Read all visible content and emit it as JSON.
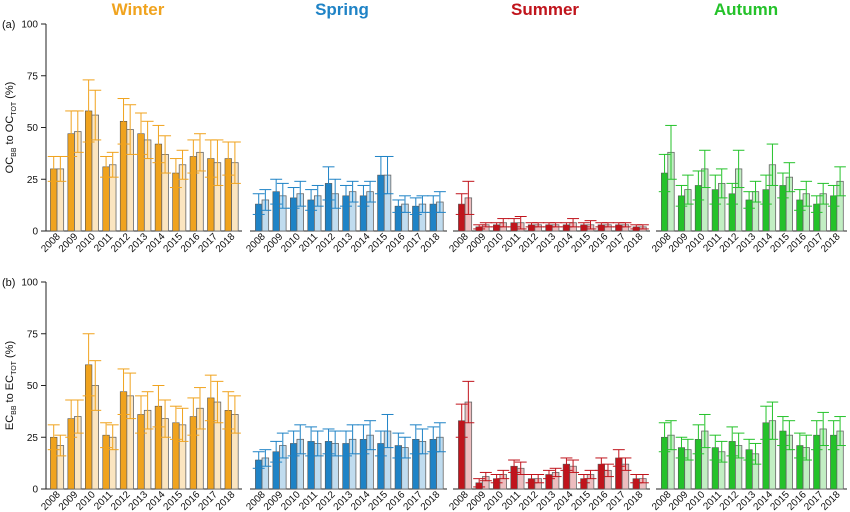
{
  "seasons": [
    {
      "name": "Winter",
      "color": "#f0a31e"
    },
    {
      "name": "Spring",
      "color": "#1f83c6"
    },
    {
      "name": "Summer",
      "color": "#c0141c"
    },
    {
      "name": "Autumn",
      "color": "#24c22a"
    }
  ],
  "chart_data": [
    {
      "type": "bar",
      "panel_label": "(a)",
      "ylabel_parts": [
        "OC",
        "BB",
        " to OC",
        "TOT",
        " (%)"
      ],
      "ylim": [
        0,
        100
      ],
      "yticks": [
        0,
        25,
        50,
        75,
        100
      ],
      "categories": [
        "2008",
        "2009",
        "2010",
        "2011",
        "2012",
        "2013",
        "2014",
        "2015",
        "2016",
        "2017",
        "2018"
      ],
      "groups": [
        {
          "season": "Winter",
          "filled": [
            30,
            47,
            58,
            31,
            53,
            47,
            42,
            28,
            36,
            35,
            35
          ],
          "filled_err": [
            6,
            11,
            15,
            5,
            11,
            10,
            9,
            7,
            8,
            9,
            8
          ],
          "hollow": [
            30,
            48,
            56,
            32,
            49,
            44,
            37,
            32,
            38,
            33,
            33
          ],
          "hollow_err": [
            6,
            10,
            12,
            6,
            12,
            9,
            9,
            7,
            9,
            11,
            10
          ]
        },
        {
          "season": "Spring",
          "filled": [
            13,
            19,
            16,
            15,
            23,
            17,
            17,
            27,
            12,
            12,
            13
          ],
          "filled_err": [
            5,
            6,
            5,
            5,
            8,
            5,
            5,
            9,
            3,
            4,
            4
          ],
          "hollow": [
            15,
            17,
            18,
            17,
            18,
            19,
            19,
            27,
            13,
            13,
            14
          ],
          "hollow_err": [
            5,
            6,
            6,
            5,
            7,
            5,
            5,
            9,
            4,
            4,
            5
          ]
        },
        {
          "season": "Summer",
          "filled": [
            13,
            2,
            3,
            4,
            3,
            3,
            3,
            3,
            3,
            3,
            2
          ],
          "filled_err": [
            5,
            1,
            1,
            2,
            1,
            1,
            1,
            1,
            1,
            1,
            1
          ],
          "hollow": [
            16,
            3,
            4,
            4,
            3,
            3,
            4,
            3,
            3,
            3,
            2
          ],
          "hollow_err": [
            8,
            1,
            2,
            3,
            1,
            1,
            2,
            2,
            1,
            1,
            1
          ]
        },
        {
          "season": "Autumn",
          "filled": [
            28,
            17,
            22,
            20,
            18,
            15,
            20,
            22,
            15,
            13,
            17
          ],
          "filled_err": [
            9,
            5,
            7,
            7,
            5,
            4,
            7,
            6,
            5,
            4,
            5
          ],
          "hollow": [
            38,
            20,
            30,
            23,
            30,
            19,
            32,
            26,
            18,
            18,
            24
          ],
          "hollow_err": [
            13,
            7,
            9,
            7,
            9,
            5,
            10,
            7,
            6,
            5,
            7
          ]
        }
      ]
    },
    {
      "type": "bar",
      "panel_label": "(b)",
      "ylabel_parts": [
        "EC",
        "BB",
        " to EC",
        "TOT",
        " (%)"
      ],
      "ylim": [
        0,
        100
      ],
      "yticks": [
        0,
        25,
        50,
        75,
        100
      ],
      "categories": [
        "2008",
        "2009",
        "2010",
        "2011",
        "2012",
        "2013",
        "2014",
        "2015",
        "2016",
        "2017",
        "2018"
      ],
      "groups": [
        {
          "season": "Winter",
          "filled": [
            25,
            34,
            60,
            26,
            47,
            36,
            40,
            32,
            35,
            44,
            38
          ],
          "filled_err": [
            6,
            9,
            15,
            6,
            11,
            9,
            10,
            8,
            9,
            11,
            9
          ],
          "hollow": [
            21,
            35,
            50,
            25,
            45,
            38,
            34,
            31,
            39,
            42,
            36
          ],
          "hollow_err": [
            5,
            8,
            12,
            6,
            11,
            9,
            9,
            8,
            10,
            10,
            9
          ]
        },
        {
          "season": "Spring",
          "filled": [
            14,
            18,
            22,
            23,
            23,
            22,
            24,
            22,
            21,
            24,
            24
          ],
          "filled_err": [
            4,
            5,
            6,
            7,
            6,
            6,
            7,
            6,
            6,
            7,
            6
          ],
          "hollow": [
            15,
            21,
            24,
            22,
            22,
            24,
            26,
            28,
            20,
            23,
            25
          ],
          "hollow_err": [
            4,
            6,
            7,
            6,
            6,
            7,
            7,
            8,
            5,
            6,
            7
          ]
        },
        {
          "season": "Summer",
          "filled": [
            33,
            3,
            5,
            11,
            5,
            7,
            12,
            5,
            12,
            15,
            5
          ],
          "filled_err": [
            8,
            2,
            2,
            3,
            2,
            2,
            3,
            2,
            3,
            4,
            2
          ],
          "hollow": [
            42,
            6,
            7,
            10,
            5,
            8,
            11,
            7,
            9,
            12,
            5
          ],
          "hollow_err": [
            10,
            2,
            2,
            3,
            2,
            2,
            3,
            2,
            3,
            3,
            2
          ]
        },
        {
          "season": "Autumn",
          "filled": [
            25,
            20,
            24,
            20,
            23,
            19,
            32,
            28,
            21,
            26,
            26
          ],
          "filled_err": [
            7,
            5,
            7,
            6,
            7,
            5,
            8,
            7,
            6,
            7,
            7
          ],
          "hollow": [
            26,
            19,
            28,
            18,
            21,
            17,
            33,
            26,
            20,
            29,
            28
          ],
          "hollow_err": [
            7,
            5,
            8,
            5,
            6,
            5,
            9,
            7,
            6,
            8,
            7
          ]
        }
      ]
    }
  ]
}
